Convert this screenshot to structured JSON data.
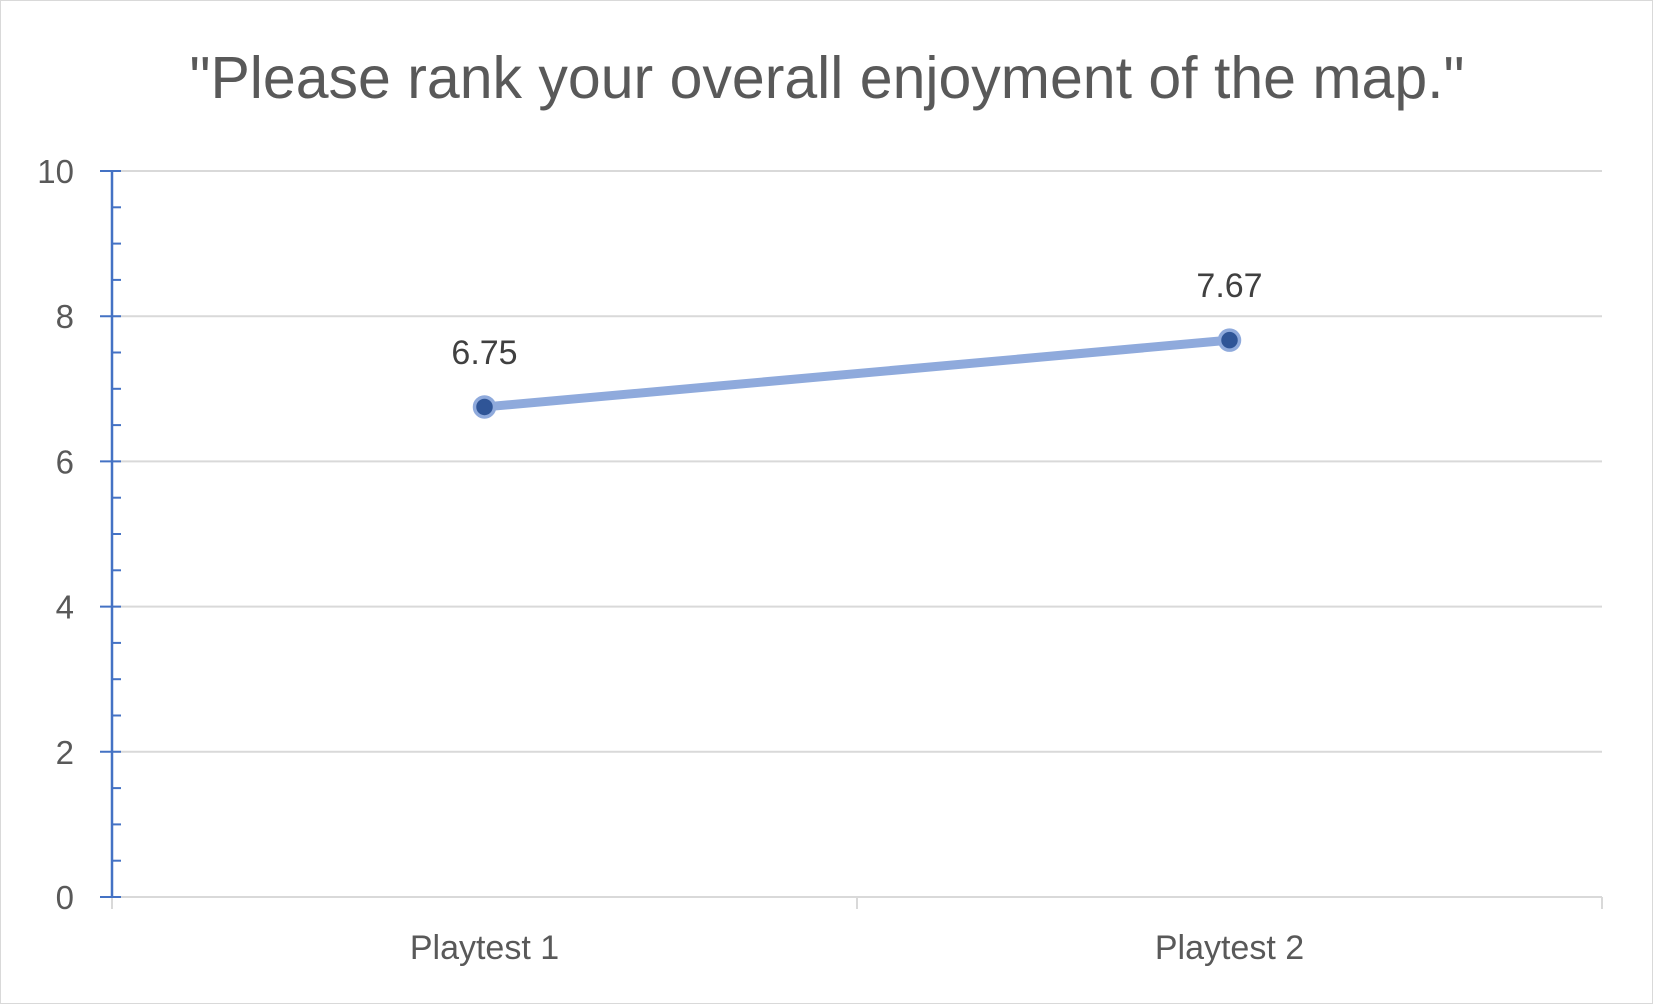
{
  "chart_data": {
    "type": "line",
    "title": "\"Please rank your overall enjoyment of the map.\"",
    "xlabel": "",
    "ylabel": "",
    "categories": [
      "Playtest 1",
      "Playtest 2"
    ],
    "series": [
      {
        "values": [
          6.75,
          7.67
        ],
        "data_labels": [
          "6.75",
          "7.67"
        ]
      }
    ],
    "ylim": [
      0,
      10
    ],
    "y_ticks": [
      0,
      2,
      4,
      6,
      8,
      10
    ],
    "y_tick_labels": [
      "0",
      "2",
      "4",
      "6",
      "8",
      "10"
    ],
    "grid": true,
    "legend": "none",
    "colors": {
      "line": "#8faadc",
      "marker_fill": "#2f5597",
      "marker_edge": "#8faadc",
      "value_axis": "#4472c4",
      "gridline": "#d9d9d9",
      "text": "#595959"
    }
  }
}
